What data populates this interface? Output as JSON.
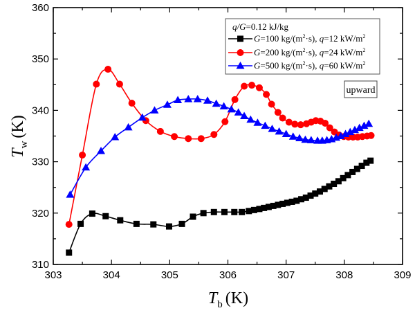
{
  "chart_data": {
    "type": "line",
    "title": "",
    "xlabel": {
      "symbol": "T",
      "subscript": "b",
      "unit": "(K)"
    },
    "ylabel": {
      "symbol": "T",
      "subscript": "w",
      "unit": "(K)"
    },
    "xlim": [
      303,
      309
    ],
    "ylim": [
      310,
      360
    ],
    "xticks": [
      303,
      304,
      305,
      306,
      307,
      308,
      309
    ],
    "yticks": [
      310,
      320,
      330,
      340,
      350,
      360
    ],
    "x_minor_step": 0.5,
    "y_minor_step": 5,
    "grid": false,
    "legend": {
      "placement": "top-right",
      "header": {
        "italic": "q/G",
        "rest": "=0.12 kJ/kg"
      },
      "entries": [
        {
          "series": 0,
          "g_label": "G",
          "g_text": "=100 kg/(m",
          "sup": "2",
          "s_text": "·s), ",
          "q_label": "q",
          "q_text": "=12 kW/m",
          "q_sup": "2"
        },
        {
          "series": 1,
          "g_label": "G",
          "g_text": "=200 kg/(m",
          "sup": "2",
          "s_text": "·s), ",
          "q_label": "q",
          "q_text": "=24 kW/m",
          "q_sup": "2"
        },
        {
          "series": 2,
          "g_label": "G",
          "g_text": "=500 kg/(m",
          "sup": "2",
          "s_text": "·s), ",
          "q_label": "q",
          "q_text": "=60 kW/m",
          "q_sup": "2"
        }
      ]
    },
    "annotation": "upward",
    "series": [
      {
        "name": "G=100 kg/(m2·s), q=12 kW/m2",
        "color": "#000000",
        "marker": "square",
        "x": [
          303.27,
          303.47,
          303.67,
          303.9,
          304.15,
          304.43,
          304.72,
          304.99,
          305.21,
          305.4,
          305.58,
          305.76,
          305.94,
          306.11,
          306.24,
          306.36,
          306.45,
          306.54,
          306.62,
          306.7,
          306.78,
          306.86,
          306.94,
          307.02,
          307.1,
          307.18,
          307.26,
          307.34,
          307.42,
          307.5,
          307.58,
          307.66,
          307.74,
          307.82,
          307.9,
          307.98,
          308.06,
          308.14,
          308.22,
          308.3,
          308.38,
          308.45
        ],
        "y": [
          312.3,
          317.9,
          319.9,
          319.4,
          318.6,
          317.9,
          317.8,
          317.4,
          317.9,
          319.3,
          320.0,
          320.2,
          320.2,
          320.2,
          320.2,
          320.4,
          320.6,
          320.8,
          321.0,
          321.2,
          321.4,
          321.6,
          321.8,
          322.0,
          322.2,
          322.4,
          322.7,
          323.0,
          323.4,
          323.8,
          324.2,
          324.7,
          325.2,
          325.7,
          326.2,
          326.8,
          327.4,
          328.0,
          328.6,
          329.2,
          329.8,
          330.2
        ]
      },
      {
        "name": "G=200 kg/(m2·s), q=24 kW/m2",
        "color": "#ff0000",
        "marker": "circle",
        "x": [
          303.27,
          303.5,
          303.74,
          303.94,
          304.14,
          304.35,
          304.59,
          304.84,
          305.08,
          305.32,
          305.54,
          305.76,
          305.95,
          306.12,
          306.28,
          306.41,
          306.54,
          306.66,
          306.75,
          306.86,
          306.94,
          307.05,
          307.15,
          307.25,
          307.35,
          307.43,
          307.51,
          307.59,
          307.67,
          307.75,
          307.83,
          307.91,
          307.99,
          308.07,
          308.15,
          308.23,
          308.31,
          308.39,
          308.46
        ],
        "y": [
          317.8,
          331.3,
          345.1,
          348.0,
          345.1,
          341.4,
          338.0,
          335.9,
          334.9,
          334.5,
          334.5,
          335.3,
          337.8,
          342.1,
          344.7,
          344.9,
          344.4,
          343.1,
          341.2,
          339.6,
          338.5,
          337.7,
          337.3,
          337.2,
          337.4,
          337.7,
          338.0,
          337.9,
          337.5,
          336.6,
          335.8,
          335.2,
          334.9,
          334.8,
          334.8,
          334.8,
          334.9,
          335.0,
          335.1
        ]
      },
      {
        "name": "G=500 kg/(m2·s), q=60 kW/m2",
        "color": "#0000ff",
        "marker": "triangle",
        "x": [
          303.29,
          303.56,
          303.82,
          304.06,
          304.29,
          304.53,
          304.74,
          304.96,
          305.14,
          305.32,
          305.48,
          305.65,
          305.8,
          305.93,
          306.06,
          306.18,
          306.28,
          306.39,
          306.51,
          306.64,
          306.76,
          306.88,
          307.0,
          307.12,
          307.23,
          307.33,
          307.43,
          307.54,
          307.62,
          307.7,
          307.78,
          307.86,
          307.94,
          308.02,
          308.1,
          308.18,
          308.26,
          308.34,
          308.42
        ],
        "y": [
          323.6,
          328.9,
          332.1,
          334.8,
          336.7,
          338.6,
          340.0,
          341.1,
          342.0,
          342.2,
          342.2,
          341.9,
          341.3,
          340.8,
          340.2,
          339.6,
          338.9,
          338.2,
          337.6,
          337.0,
          336.4,
          335.9,
          335.4,
          334.9,
          334.6,
          334.3,
          334.2,
          334.1,
          334.1,
          334.2,
          334.4,
          334.7,
          335.0,
          335.4,
          335.8,
          336.2,
          336.6,
          337.0,
          337.4
        ]
      }
    ]
  }
}
